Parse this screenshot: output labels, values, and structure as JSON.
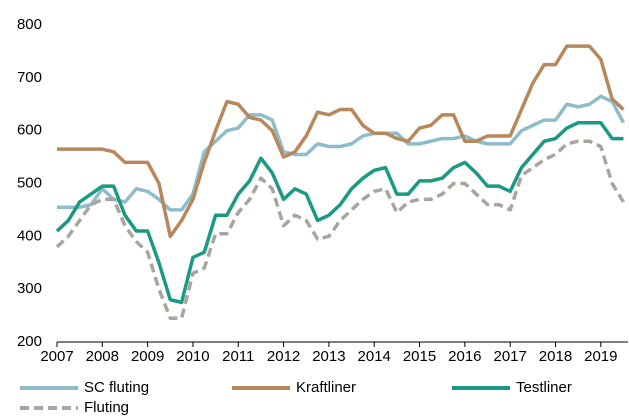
{
  "chart_data": {
    "type": "line",
    "x": [
      2007,
      2007.25,
      2007.5,
      2007.75,
      2008,
      2008.25,
      2008.5,
      2008.75,
      2009,
      2009.25,
      2009.5,
      2009.75,
      2010,
      2010.25,
      2010.5,
      2010.75,
      2011,
      2011.25,
      2011.5,
      2011.75,
      2012,
      2012.25,
      2012.5,
      2012.75,
      2013,
      2013.25,
      2013.5,
      2013.75,
      2014,
      2014.25,
      2014.5,
      2014.75,
      2015,
      2015.25,
      2015.5,
      2015.75,
      2016,
      2016.25,
      2016.5,
      2016.75,
      2017,
      2017.25,
      2017.5,
      2017.75,
      2018,
      2018.25,
      2018.5,
      2018.75,
      2019,
      2019.25,
      2019.5
    ],
    "series": [
      {
        "name": "SC fluting",
        "color": "#8fbccb",
        "values": [
          455,
          455,
          455,
          460,
          490,
          470,
          465,
          490,
          485,
          470,
          450,
          450,
          480,
          560,
          580,
          600,
          605,
          630,
          630,
          620,
          560,
          555,
          555,
          575,
          570,
          570,
          575,
          590,
          595,
          595,
          595,
          575,
          575,
          580,
          585,
          585,
          590,
          580,
          575,
          575,
          575,
          600,
          610,
          620,
          620,
          650,
          645,
          650,
          665,
          655,
          615
        ]
      },
      {
        "name": "Kraftliner",
        "color": "#b8875c",
        "values": [
          565,
          565,
          565,
          565,
          565,
          560,
          540,
          540,
          540,
          500,
          400,
          430,
          470,
          540,
          600,
          655,
          650,
          625,
          620,
          600,
          550,
          560,
          590,
          635,
          630,
          640,
          640,
          610,
          595,
          595,
          585,
          580,
          605,
          610,
          630,
          630,
          580,
          580,
          590,
          590,
          590,
          640,
          690,
          725,
          725,
          760,
          760,
          760,
          735,
          660,
          640
        ]
      },
      {
        "name": "Testliner",
        "color": "#1a9a82",
        "values": [
          410,
          430,
          465,
          480,
          495,
          495,
          440,
          410,
          410,
          350,
          280,
          275,
          360,
          370,
          440,
          440,
          480,
          505,
          548,
          520,
          470,
          490,
          480,
          430,
          440,
          460,
          490,
          510,
          525,
          530,
          480,
          480,
          505,
          505,
          510,
          530,
          540,
          520,
          495,
          495,
          485,
          530,
          555,
          580,
          585,
          605,
          615,
          615,
          615,
          585,
          585
        ]
      },
      {
        "name": "Fluting",
        "color": "#aaa49c",
        "dashed": true,
        "values": [
          380,
          400,
          430,
          460,
          470,
          470,
          420,
          390,
          370,
          300,
          245,
          245,
          330,
          340,
          405,
          405,
          445,
          470,
          510,
          490,
          420,
          440,
          430,
          395,
          400,
          430,
          450,
          470,
          485,
          490,
          445,
          465,
          470,
          470,
          480,
          500,
          500,
          480,
          460,
          460,
          450,
          515,
          530,
          545,
          555,
          575,
          580,
          580,
          570,
          500,
          465
        ]
      }
    ],
    "xlim": [
      2007,
      2019.6
    ],
    "xticks": [
      2007,
      2008,
      2009,
      2010,
      2011,
      2012,
      2013,
      2014,
      2015,
      2016,
      2017,
      2018,
      2019
    ],
    "ylim": [
      200,
      800
    ],
    "yticks": [
      200,
      300,
      400,
      500,
      600,
      700,
      800
    ]
  }
}
